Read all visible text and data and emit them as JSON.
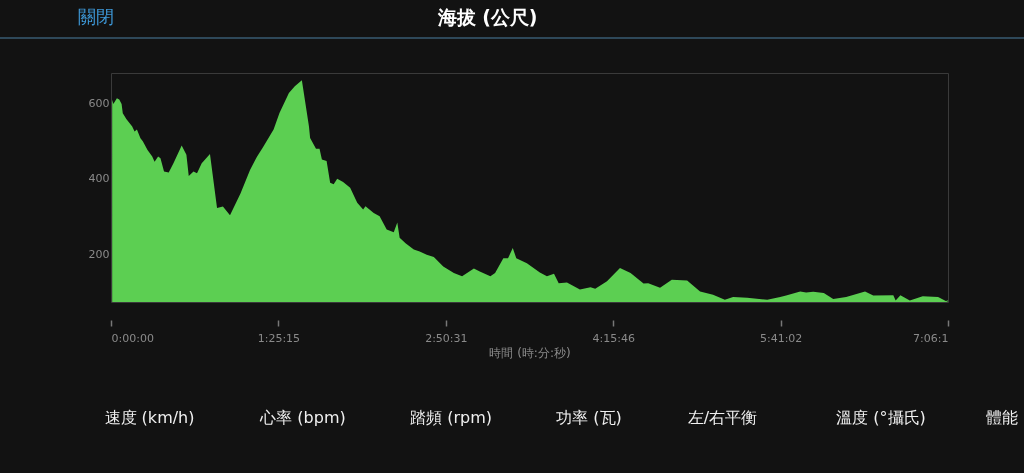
{
  "chart_data": {
    "type": "area",
    "title": "海拔 (公尺)",
    "xlabel": "時間 (時:分:秒)",
    "x": [
      0.01,
      0.02,
      0.05,
      0.07,
      0.09,
      0.1,
      0.13,
      0.18,
      0.2,
      0.22,
      0.25,
      0.27,
      0.31,
      0.35,
      0.37,
      0.4,
      0.42,
      0.45,
      0.49,
      0.53,
      0.6,
      0.64,
      0.66,
      0.7,
      0.73,
      0.77,
      0.84,
      0.9,
      0.95,
      1.01,
      1.1,
      1.18,
      1.24,
      1.29,
      1.38,
      1.43,
      1.51,
      1.56,
      1.62,
      1.68,
      1.69,
      1.74,
      1.77,
      1.79,
      1.83,
      1.86,
      1.89,
      1.92,
      1.97,
      2.03,
      2.09,
      2.14,
      2.16,
      2.23,
      2.28,
      2.34,
      2.4,
      2.43,
      2.45,
      2.5,
      2.57,
      2.62,
      2.68,
      2.74,
      2.82,
      2.91,
      2.98,
      3.08,
      3.13,
      3.22,
      3.26,
      3.33,
      3.37,
      3.41,
      3.44,
      3.53,
      3.64,
      3.7,
      3.76,
      3.8,
      3.87,
      3.98,
      4.07,
      4.11,
      4.21,
      4.32,
      4.41,
      4.52,
      4.56,
      4.66,
      4.76,
      4.89,
      5.0,
      5.11,
      5.21,
      5.28,
      5.4,
      5.57,
      5.68,
      5.73,
      5.85,
      5.9,
      5.96,
      6.05,
      6.13,
      6.24,
      6.4,
      6.47,
      6.64,
      6.66,
      6.7,
      6.78,
      6.89,
      7.02,
      7.09,
      7.1
    ],
    "series": [
      {
        "color": "#5ccf52",
        "values": [
          609,
          598,
          613,
          610,
          598,
          573,
          558,
          538,
          525,
          530,
          507,
          499,
          476,
          459,
          445,
          459,
          454,
          419,
          416,
          441,
          488,
          463,
          407,
          419,
          414,
          441,
          465,
          322,
          326,
          303,
          361,
          423,
          459,
          483,
          530,
          574,
          627,
          645,
          661,
          539,
          508,
          479,
          479,
          451,
          447,
          389,
          385,
          400,
          391,
          376,
          336,
          318,
          327,
          309,
          300,
          265,
          258,
          284,
          243,
          229,
          212,
          207,
          198,
          192,
          167,
          150,
          141,
          162,
          154,
          141,
          150,
          189,
          189,
          216,
          189,
          176,
          151,
          141,
          148,
          123,
          125,
          106,
          112,
          108,
          128,
          163,
          150,
          122,
          123,
          111,
          132,
          130,
          101,
          92,
          79,
          86,
          84,
          79,
          86,
          90,
          101,
          98,
          100,
          97,
          81,
          86,
          101,
          90,
          91,
          77,
          91,
          77,
          88,
          86,
          75,
          79
        ]
      }
    ],
    "xlim": [
      0,
      7.1042
    ],
    "ylim": [
      73,
      680
    ],
    "xticks": [
      {
        "value": 0,
        "label": "0:00:00"
      },
      {
        "value": 1.42083,
        "label": "1:25:15"
      },
      {
        "value": 2.84194,
        "label": "2:50:31"
      },
      {
        "value": 4.26278,
        "label": "4:15:46"
      },
      {
        "value": 5.68389,
        "label": "5:41:02"
      },
      {
        "value": 7.10417,
        "label": "7:06:1"
      }
    ],
    "yticks": [
      200,
      400,
      600
    ],
    "grid": false,
    "annotations": [
      "關閉",
      "速度 (km/h)",
      "心率 (bpm)",
      "踏頻 (rpm)",
      "功率 (瓦)",
      "左/右平衡",
      "溫度 (°攝氏)",
      "體能"
    ]
  }
}
